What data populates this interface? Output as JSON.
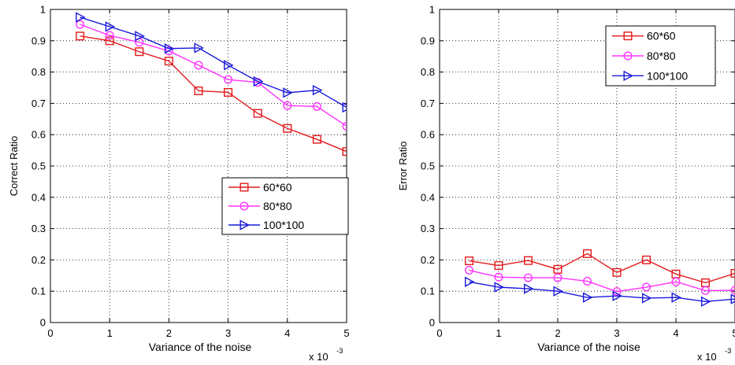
{
  "chart_data": [
    {
      "type": "line",
      "xlabel": "Variance of the noise",
      "ylabel": "Correct Ratio",
      "x_multiplier_label": {
        "base": "x 10",
        "exponent": "-3"
      },
      "xlim": [
        0,
        5
      ],
      "ylim": [
        0,
        1
      ],
      "xticks": [
        "0",
        "1",
        "2",
        "3",
        "4",
        "5"
      ],
      "yticks": [
        "0",
        "0.1",
        "0.2",
        "0.3",
        "0.4",
        "0.5",
        "0.6",
        "0.7",
        "0.8",
        "0.9",
        "1"
      ],
      "grid": true,
      "legend_position": "center-right",
      "x": [
        0.5,
        1.0,
        1.5,
        2.0,
        2.5,
        3.0,
        3.5,
        4.0,
        4.5,
        5.0
      ],
      "series": [
        {
          "name": "60*60",
          "color": "#e31a1c",
          "marker": "square",
          "values": [
            0.915,
            0.9,
            0.865,
            0.835,
            0.74,
            0.735,
            0.668,
            0.62,
            0.585,
            0.546
          ]
        },
        {
          "name": "80*80",
          "color": "#ff33ff",
          "marker": "circle",
          "values": [
            0.952,
            0.917,
            0.895,
            0.867,
            0.822,
            0.776,
            0.767,
            0.693,
            0.69,
            0.627
          ]
        },
        {
          "name": "100*100",
          "color": "#1a1adb",
          "marker": "triangle-right",
          "values": [
            0.975,
            0.945,
            0.915,
            0.875,
            0.877,
            0.822,
            0.77,
            0.734,
            0.742,
            0.687
          ]
        }
      ]
    },
    {
      "type": "line",
      "xlabel": "Variance of the noise",
      "ylabel": "Error Ratio",
      "x_multiplier_label": {
        "base": "x 10",
        "exponent": "-3"
      },
      "xlim": [
        0,
        5
      ],
      "ylim": [
        0,
        1
      ],
      "xticks": [
        "0",
        "1",
        "2",
        "3",
        "4",
        "5"
      ],
      "yticks": [
        "0",
        "0.1",
        "0.2",
        "0.3",
        "0.4",
        "0.5",
        "0.6",
        "0.7",
        "0.8",
        "0.9",
        "1"
      ],
      "grid": true,
      "legend_position": "top-right",
      "x": [
        0.5,
        1.0,
        1.5,
        2.0,
        2.5,
        3.0,
        3.5,
        4.0,
        4.5,
        5.0
      ],
      "series": [
        {
          "name": "60*60",
          "color": "#e31a1c",
          "marker": "square",
          "values": [
            0.197,
            0.182,
            0.198,
            0.17,
            0.22,
            0.16,
            0.2,
            0.155,
            0.127,
            0.157
          ]
        },
        {
          "name": "80*80",
          "color": "#ff33ff",
          "marker": "circle",
          "values": [
            0.167,
            0.145,
            0.143,
            0.143,
            0.132,
            0.099,
            0.113,
            0.13,
            0.102,
            0.103
          ]
        },
        {
          "name": "100*100",
          "color": "#1a1adb",
          "marker": "triangle-right",
          "values": [
            0.13,
            0.113,
            0.108,
            0.1,
            0.08,
            0.085,
            0.078,
            0.08,
            0.067,
            0.075
          ]
        }
      ]
    }
  ]
}
